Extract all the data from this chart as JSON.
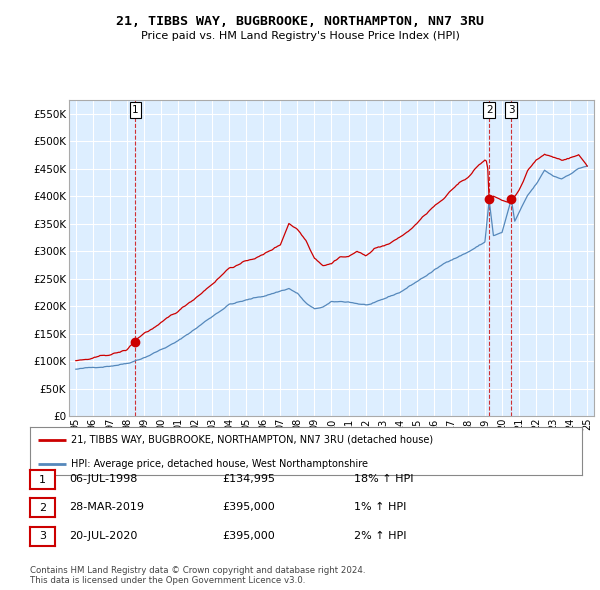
{
  "title": "21, TIBBS WAY, BUGBROOKE, NORTHAMPTON, NN7 3RU",
  "subtitle": "Price paid vs. HM Land Registry's House Price Index (HPI)",
  "ylabel_ticks": [
    "£0",
    "£50K",
    "£100K",
    "£150K",
    "£200K",
    "£250K",
    "£300K",
    "£350K",
    "£400K",
    "£450K",
    "£500K",
    "£550K"
  ],
  "ytick_values": [
    0,
    50000,
    100000,
    150000,
    200000,
    250000,
    300000,
    350000,
    400000,
    450000,
    500000,
    550000
  ],
  "ylim": [
    0,
    575000
  ],
  "legend_line1": "21, TIBBS WAY, BUGBROOKE, NORTHAMPTON, NN7 3RU (detached house)",
  "legend_line2": "HPI: Average price, detached house, West Northamptonshire",
  "transactions": [
    {
      "num": 1,
      "date": "06-JUL-1998",
      "price": "£134,995",
      "hpi": "18% ↑ HPI",
      "year": 1998.5,
      "value": 134995
    },
    {
      "num": 2,
      "date": "28-MAR-2019",
      "price": "£395,000",
      "hpi": "1% ↑ HPI",
      "year": 2019.25,
      "value": 395000
    },
    {
      "num": 3,
      "date": "20-JUL-2020",
      "price": "£395,000",
      "hpi": "2% ↑ HPI",
      "year": 2020.55,
      "value": 395000
    }
  ],
  "footer": "Contains HM Land Registry data © Crown copyright and database right 2024.\nThis data is licensed under the Open Government Licence v3.0.",
  "red_line_color": "#cc0000",
  "blue_line_color": "#5588bb",
  "grid_color": "#cccccc",
  "bg_color": "#ffffff",
  "plot_bg_color": "#ddeeff",
  "xticklabels": [
    "95",
    "96",
    "97",
    "98",
    "99",
    "00",
    "01",
    "02",
    "03",
    "04",
    "05",
    "06",
    "07",
    "08",
    "09",
    "10",
    "11",
    "12",
    "13",
    "14",
    "15",
    "16",
    "17",
    "18",
    "19",
    "20",
    "21",
    "22",
    "23",
    "24",
    "25"
  ],
  "xtick_years": [
    1995,
    1996,
    1997,
    1998,
    1999,
    2000,
    2001,
    2002,
    2003,
    2004,
    2005,
    2006,
    2007,
    2008,
    2009,
    2010,
    2011,
    2012,
    2013,
    2014,
    2015,
    2016,
    2017,
    2018,
    2019,
    2020,
    2021,
    2022,
    2023,
    2024,
    2025
  ]
}
